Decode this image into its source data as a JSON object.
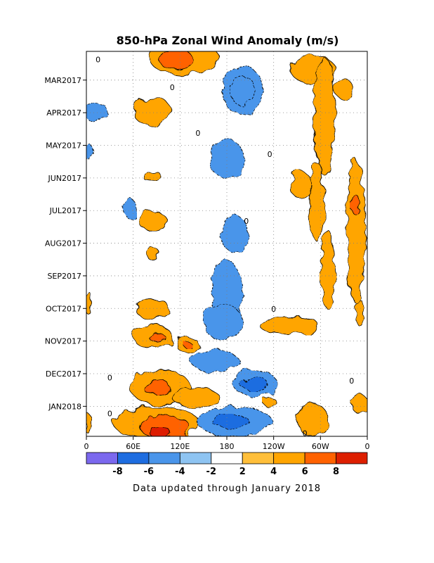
{
  "chart_data": {
    "type": "heatmap",
    "title": "850-hPa Zonal Wind Anomaly (m/s)",
    "xlabel": "",
    "ylabel": "",
    "x_ticks": [
      "0",
      "60E",
      "120E",
      "180",
      "120W",
      "60W",
      "0"
    ],
    "x_values": [
      0,
      60,
      120,
      180,
      240,
      300,
      360
    ],
    "xlim": [
      0,
      360
    ],
    "y_ticks": [
      "MAR2017",
      "APR2017",
      "MAY2017",
      "JUN2017",
      "JUL2017",
      "AUG2017",
      "SEP2017",
      "OCT2017",
      "NOV2017",
      "DEC2017",
      "JAN2018"
    ],
    "ylim_months": [
      0,
      11.8
    ],
    "grid": true,
    "colorbar": {
      "levels": [
        -8,
        -6,
        -4,
        -2,
        2,
        4,
        6,
        8
      ],
      "labels": [
        "-8",
        "-6",
        "-4",
        "-2",
        "2",
        "4",
        "6",
        "8"
      ],
      "colors": [
        "#7b68ee",
        "#1e6de0",
        "#4a95ea",
        "#8ec4f2",
        "#ffffff",
        "#ffbf3a",
        "#ffa500",
        "#ff6200",
        "#dd1f00"
      ]
    },
    "regions": [
      {
        "lon": 125,
        "t": 0.2,
        "rlon": 45,
        "rt": 0.5,
        "value": 4
      },
      {
        "lon": 115,
        "t": 0.25,
        "rlon": 22,
        "rt": 0.3,
        "value": 6
      },
      {
        "lon": 290,
        "t": 0.55,
        "rlon": 28,
        "rt": 0.45,
        "value": 4
      },
      {
        "lon": 305,
        "t": 2.0,
        "rlon": 14,
        "rt": 1.8,
        "value": 4
      },
      {
        "lon": 330,
        "t": 1.15,
        "rlon": 12,
        "rt": 0.3,
        "value": 4
      },
      {
        "lon": 85,
        "t": 1.85,
        "rlon": 24,
        "rt": 0.45,
        "value": 4
      },
      {
        "lon": 200,
        "t": 1.2,
        "rlon": 26,
        "rt": 0.75,
        "value": -4
      },
      {
        "lon": 200,
        "t": 1.2,
        "rlon": 16,
        "rt": 0.45,
        "value": -4
      },
      {
        "lon": 12,
        "t": 1.85,
        "rlon": 15,
        "rt": 0.3,
        "value": -4
      },
      {
        "lon": 180,
        "t": 3.3,
        "rlon": 22,
        "rt": 0.6,
        "value": -4
      },
      {
        "lon": 4,
        "t": 3.1,
        "rlon": 5,
        "rt": 0.25,
        "value": -4
      },
      {
        "lon": 85,
        "t": 3.85,
        "rlon": 12,
        "rt": 0.15,
        "value": 4
      },
      {
        "lon": 85,
        "t": 5.2,
        "rlon": 18,
        "rt": 0.3,
        "value": 4
      },
      {
        "lon": 55,
        "t": 4.8,
        "rlon": 8,
        "rt": 0.3,
        "value": -4
      },
      {
        "lon": 190,
        "t": 5.6,
        "rlon": 18,
        "rt": 0.55,
        "value": -4
      },
      {
        "lon": 295,
        "t": 4.6,
        "rlon": 10,
        "rt": 1.2,
        "value": 4
      },
      {
        "lon": 275,
        "t": 4.1,
        "rlon": 14,
        "rt": 0.4,
        "value": 4
      },
      {
        "lon": 345,
        "t": 5.5,
        "rlon": 12,
        "rt": 2.2,
        "value": 4
      },
      {
        "lon": 345,
        "t": 4.7,
        "rlon": 6,
        "rt": 0.3,
        "value": 6
      },
      {
        "lon": 310,
        "t": 6.7,
        "rlon": 9,
        "rt": 1.2,
        "value": 4
      },
      {
        "lon": 85,
        "t": 6.2,
        "rlon": 8,
        "rt": 0.2,
        "value": 4
      },
      {
        "lon": 180,
        "t": 7.5,
        "rlon": 20,
        "rt": 1.1,
        "value": -4
      },
      {
        "lon": 175,
        "t": 8.3,
        "rlon": 25,
        "rt": 0.55,
        "value": -4
      },
      {
        "lon": 85,
        "t": 7.9,
        "rlon": 22,
        "rt": 0.3,
        "value": 4
      },
      {
        "lon": 260,
        "t": 8.4,
        "rlon": 38,
        "rt": 0.25,
        "value": 4
      },
      {
        "lon": 2,
        "t": 7.7,
        "rlon": 4,
        "rt": 0.35,
        "value": 4
      },
      {
        "lon": 350,
        "t": 8.0,
        "rlon": 6,
        "rt": 0.4,
        "value": 4
      },
      {
        "lon": 85,
        "t": 8.75,
        "rlon": 25,
        "rt": 0.35,
        "value": 4
      },
      {
        "lon": 90,
        "t": 8.75,
        "rlon": 10,
        "rt": 0.15,
        "value": 6
      },
      {
        "lon": 130,
        "t": 9.0,
        "rlon": 14,
        "rt": 0.25,
        "value": 4
      },
      {
        "lon": 130,
        "t": 9.0,
        "rlon": 5,
        "rt": 0.1,
        "value": 6
      },
      {
        "lon": 165,
        "t": 9.5,
        "rlon": 30,
        "rt": 0.35,
        "value": -4
      },
      {
        "lon": 215,
        "t": 10.15,
        "rlon": 28,
        "rt": 0.4,
        "value": -4
      },
      {
        "lon": 215,
        "t": 10.2,
        "rlon": 18,
        "rt": 0.2,
        "value": -6
      },
      {
        "lon": 95,
        "t": 10.3,
        "rlon": 38,
        "rt": 0.55,
        "value": 4
      },
      {
        "lon": 90,
        "t": 10.3,
        "rlon": 18,
        "rt": 0.2,
        "value": 6
      },
      {
        "lon": 140,
        "t": 10.6,
        "rlon": 30,
        "rt": 0.3,
        "value": 4
      },
      {
        "lon": 90,
        "t": 11.4,
        "rlon": 55,
        "rt": 0.5,
        "value": 4
      },
      {
        "lon": 100,
        "t": 11.5,
        "rlon": 32,
        "rt": 0.35,
        "value": 6
      },
      {
        "lon": 95,
        "t": 11.7,
        "rlon": 14,
        "rt": 0.15,
        "value": 8
      },
      {
        "lon": 190,
        "t": 11.35,
        "rlon": 48,
        "rt": 0.45,
        "value": -4
      },
      {
        "lon": 185,
        "t": 11.35,
        "rlon": 24,
        "rt": 0.2,
        "value": -6
      },
      {
        "lon": 350,
        "t": 10.8,
        "rlon": 10,
        "rt": 0.3,
        "value": 4
      },
      {
        "lon": 290,
        "t": 11.3,
        "rlon": 20,
        "rt": 0.5,
        "value": 4
      },
      {
        "lon": 2,
        "t": 11.4,
        "rlon": 4,
        "rt": 0.3,
        "value": 4
      },
      {
        "lon": 235,
        "t": 10.75,
        "rlon": 8,
        "rt": 0.15,
        "value": 4
      }
    ],
    "zero_contour_labels": [
      {
        "lon": 15,
        "t": 0.25,
        "label": "0"
      },
      {
        "lon": 143,
        "t": 2.5,
        "label": "0"
      },
      {
        "lon": 235,
        "t": 3.15,
        "label": "0"
      },
      {
        "lon": 110,
        "t": 1.1,
        "label": "0"
      },
      {
        "lon": 205,
        "t": 5.2,
        "label": "0"
      },
      {
        "lon": 240,
        "t": 7.9,
        "label": "0"
      },
      {
        "lon": 340,
        "t": 10.1,
        "label": "0"
      },
      {
        "lon": 30,
        "t": 10.0,
        "label": "0"
      },
      {
        "lon": 280,
        "t": 11.7,
        "label": "0"
      },
      {
        "lon": 30,
        "t": 11.1,
        "label": "0"
      }
    ]
  },
  "note": "Data updated through January 2018"
}
